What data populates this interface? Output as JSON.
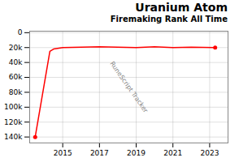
{
  "chart_data": {
    "type": "line",
    "title": "Uranium Atom",
    "subtitle": "Firemaking Rank All Time",
    "annotations": [
      "RuneScript Tracker"
    ],
    "series": [
      {
        "type": "line",
        "color": "#ff0000",
        "x": [
          2013.5,
          2014.3,
          2014.5,
          2015.0,
          2016.0,
          2017.0,
          2018.0,
          2019.0,
          2020.0,
          2021.0,
          2022.0,
          2023.3
        ],
        "values": [
          140000,
          25000,
          22000,
          20000,
          19500,
          19000,
          19500,
          20000,
          19000,
          20000,
          19500,
          20000
        ]
      },
      {
        "type": "scatter",
        "color": "#ff0000",
        "x": [
          2013.5,
          2023.3
        ],
        "values": [
          140000,
          20000
        ]
      }
    ],
    "xlim": [
      2013.2,
      2024.0
    ],
    "ylim": [
      148000,
      -2000
    ],
    "xticks": [
      2015,
      2017,
      2019,
      2021,
      2023
    ],
    "yticks": [
      0,
      {
        "value": 20000,
        "label": "20k"
      },
      {
        "value": 40000,
        "label": "40k"
      },
      {
        "value": 60000,
        "label": "60k"
      },
      {
        "value": 80000,
        "label": "80k"
      },
      {
        "value": 100000,
        "label": "100k"
      },
      {
        "value": 120000,
        "label": "120k"
      },
      {
        "value": 140000,
        "label": "140k"
      }
    ],
    "grid": true
  }
}
